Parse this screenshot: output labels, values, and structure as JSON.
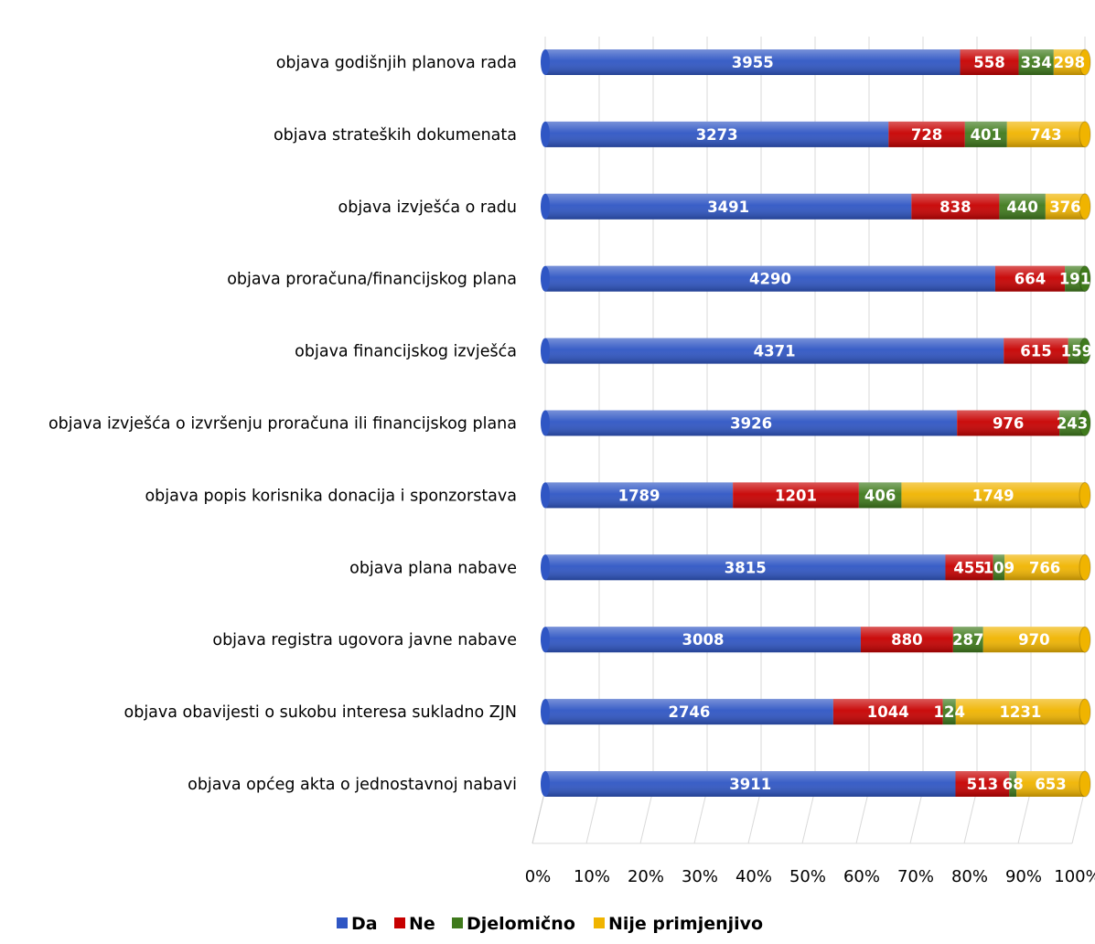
{
  "chart_data": {
    "type": "bar",
    "orientation": "horizontal",
    "stacked": "percent",
    "categories": [
      "objava godišnjih planova rada",
      "objava strateških dokumenata",
      "objava izvješća o radu",
      "objava proračuna/financijskog plana",
      "objava financijskog izvješća",
      "objava izvješća o izvršenju proračuna ili financijskog plana",
      "objava popis korisnika donacija i sponzorstava",
      "objava plana nabave",
      "objava registra ugovora javne nabave",
      "objava obavijesti o sukobu interesa sukladno ZJN",
      "objava općeg akta o jednostavnoj nabavi"
    ],
    "series": [
      {
        "name": "Da",
        "color": "#2f56c4",
        "values": [
          3955,
          3273,
          3491,
          4290,
          4371,
          3926,
          1789,
          3815,
          3008,
          2746,
          3911
        ]
      },
      {
        "name": "Ne",
        "color": "#c70000",
        "values": [
          558,
          728,
          838,
          664,
          615,
          976,
          1201,
          455,
          880,
          1044,
          513
        ]
      },
      {
        "name": "Djelomično",
        "color": "#3f7a1c",
        "values": [
          334,
          401,
          440,
          191,
          159,
          243,
          406,
          109,
          287,
          124,
          68
        ]
      },
      {
        "name": "Nije primjenjivo",
        "color": "#f0b400",
        "values": [
          298,
          743,
          376,
          0,
          0,
          0,
          1749,
          766,
          970,
          1231,
          653
        ]
      }
    ],
    "x_ticks": [
      "0%",
      "10%",
      "20%",
      "30%",
      "40%",
      "50%",
      "60%",
      "70%",
      "80%",
      "90%",
      "100%"
    ],
    "xlim": [
      0,
      100
    ],
    "grid": true,
    "legend_position": "bottom"
  }
}
